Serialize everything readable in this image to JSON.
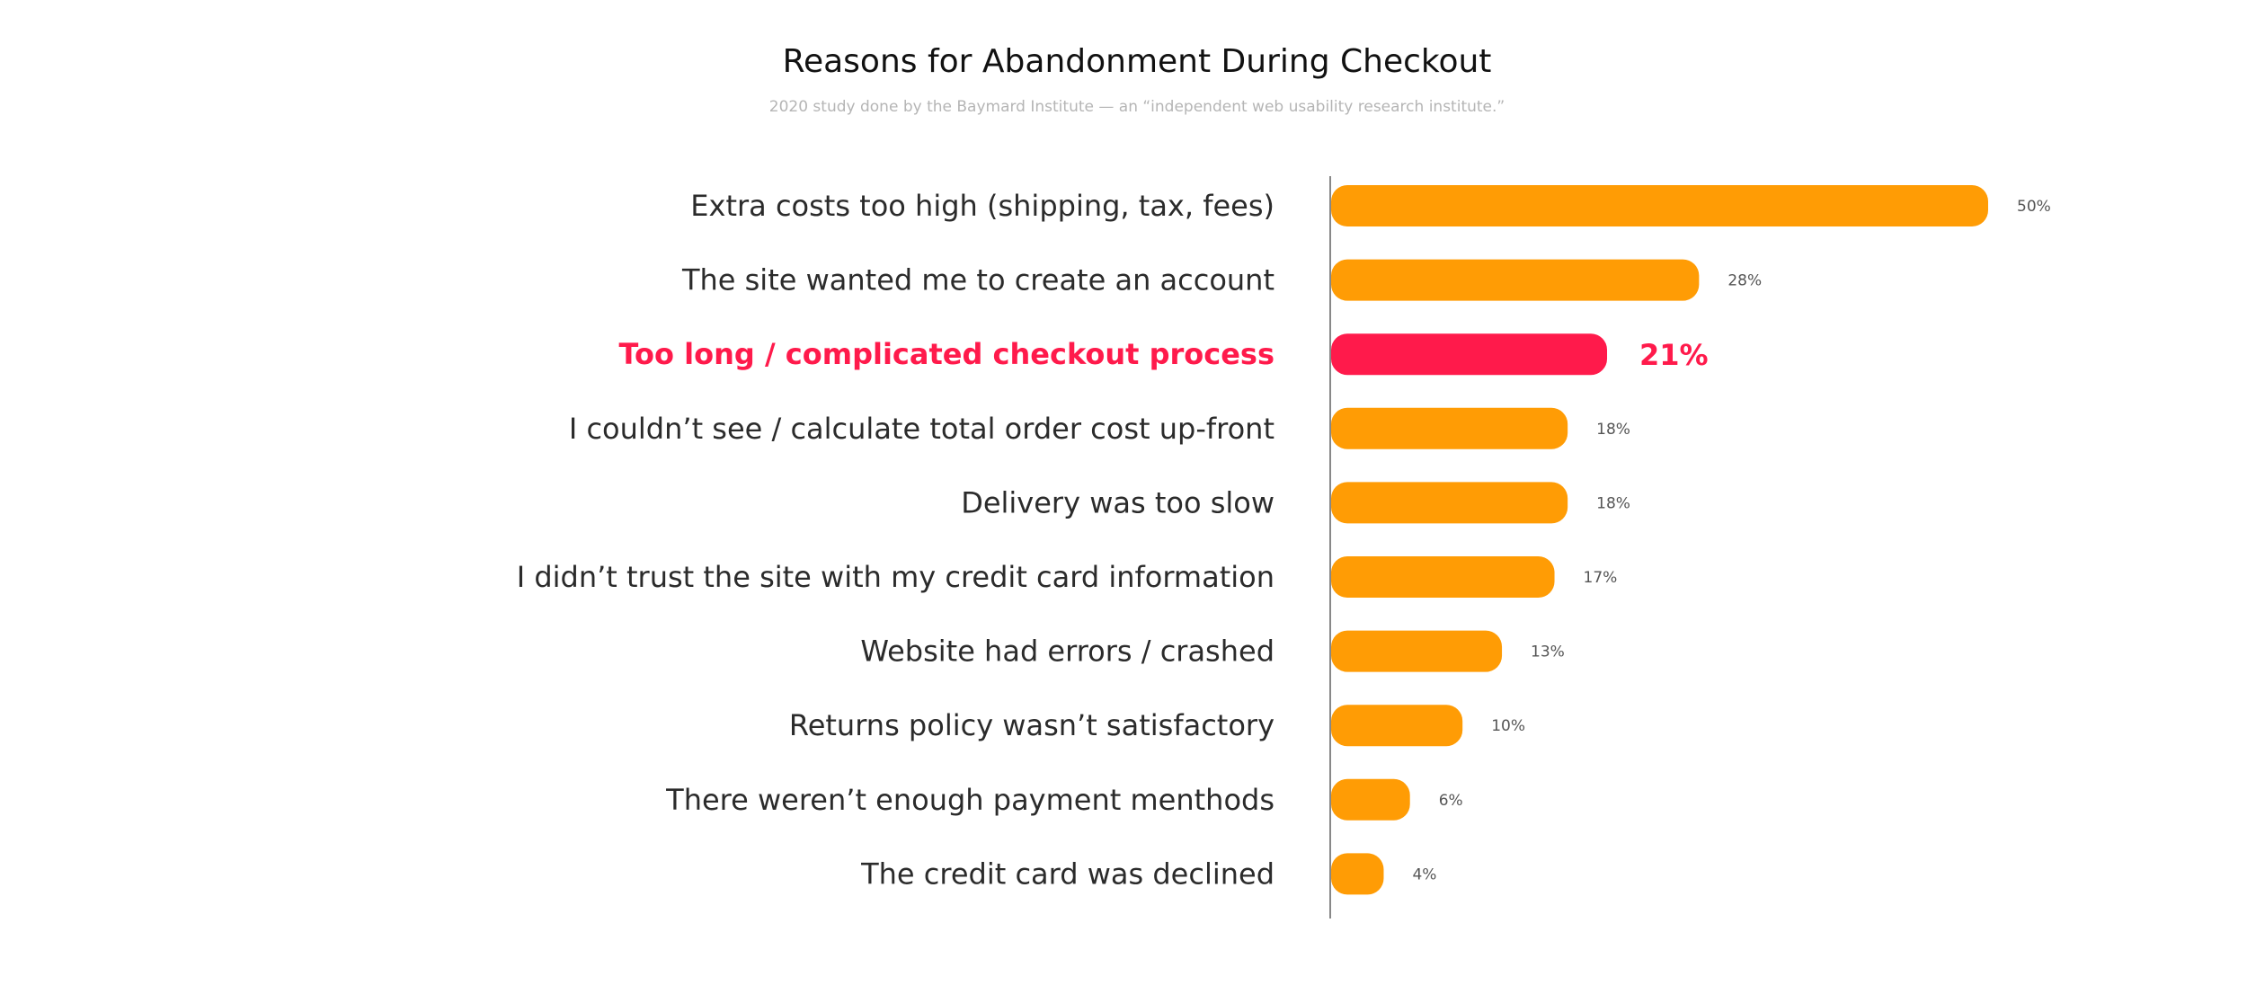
{
  "colors": {
    "bar": "#ff9c05",
    "highlight": "#ff1a4b",
    "axis": "#888888"
  },
  "chart_data": {
    "type": "bar",
    "orientation": "horizontal",
    "title": "Reasons for Abandonment During Checkout",
    "subtitle": "2020 study done by the Baymard Institute — an “independent web usability research institute.”",
    "categories": [
      "Extra costs too high (shipping, tax, fees)",
      "The site wanted me to create an account",
      "Too long / complicated checkout process",
      "I couldn’t see / calculate total order cost up-front",
      "Delivery was too slow",
      "I didn’t trust the site with my credit card information",
      "Website had errors / crashed",
      "Returns policy wasn’t satisfactory",
      "There weren’t enough payment menthods",
      "The credit card was declined"
    ],
    "values": [
      50,
      28,
      21,
      18,
      18,
      17,
      13,
      10,
      6,
      4
    ],
    "value_labels": [
      "50%",
      "28%",
      "21%",
      "18%",
      "18%",
      "17%",
      "13%",
      "10%",
      "6%",
      "4%"
    ],
    "highlight_index": 2,
    "xlim": [
      0,
      50
    ],
    "grid": false
  }
}
